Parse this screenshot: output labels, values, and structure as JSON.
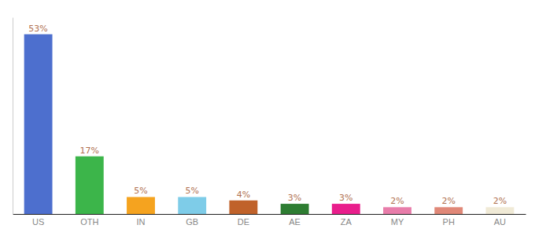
{
  "chart_data": {
    "type": "bar",
    "categories": [
      "US",
      "OTH",
      "IN",
      "GB",
      "DE",
      "AE",
      "ZA",
      "MY",
      "PH",
      "AU"
    ],
    "values": [
      53,
      17,
      5,
      5,
      4,
      3,
      3,
      2,
      2,
      2
    ],
    "value_labels": [
      "53%",
      "17%",
      "5%",
      "5%",
      "4%",
      "3%",
      "3%",
      "2%",
      "2%",
      "2%"
    ],
    "colors": [
      "#4d6fce",
      "#3cb54a",
      "#f5a31f",
      "#7ecce8",
      "#c0622a",
      "#2e7d32",
      "#e91e8c",
      "#e87daa",
      "#e08878",
      "#f0ead6"
    ],
    "ylim": [
      0,
      58
    ],
    "data_labels": true,
    "tick_labels": "x",
    "grid": false
  }
}
